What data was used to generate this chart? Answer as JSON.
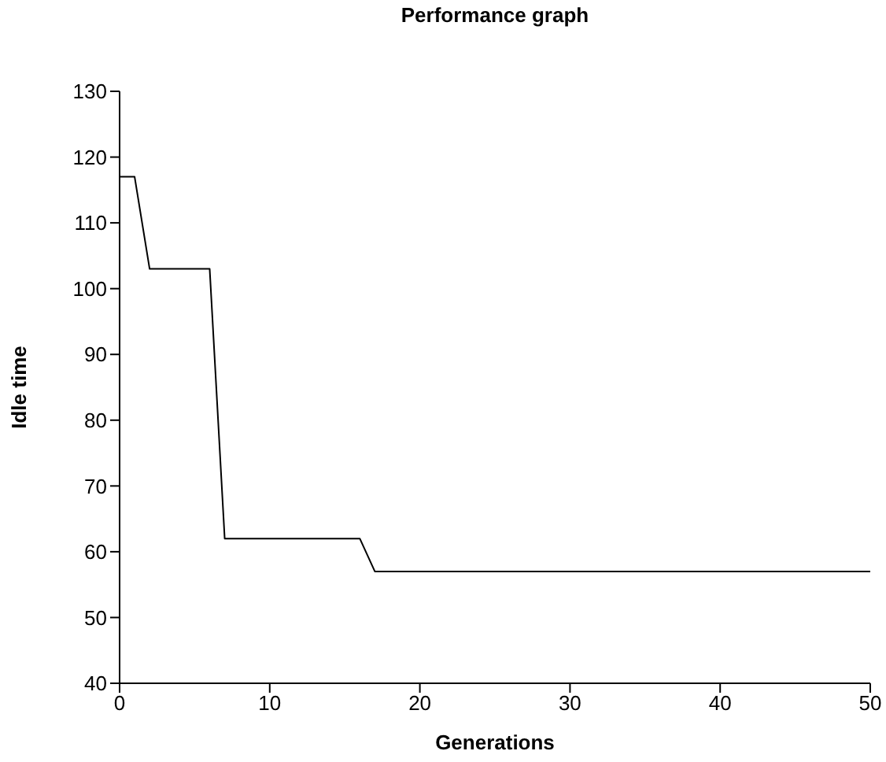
{
  "chart_data": {
    "type": "line",
    "title": "Performance graph",
    "xlabel": "Generations",
    "ylabel": "Idle time",
    "x": [
      0,
      1,
      2,
      3,
      4,
      5,
      6,
      7,
      8,
      9,
      10,
      11,
      12,
      13,
      14,
      15,
      16,
      17,
      20,
      30,
      40,
      50
    ],
    "series": [
      {
        "color": "#000000",
        "values": [
          117,
          117,
          103,
          103,
          103,
          103,
          103,
          62,
          62,
          62,
          62,
          62,
          62,
          62,
          62,
          62,
          62,
          57,
          57,
          57,
          57,
          57
        ]
      }
    ],
    "xlim": [
      0,
      50
    ],
    "xticks": [
      0,
      10,
      20,
      30,
      40,
      50
    ],
    "ylim": [
      40,
      130
    ],
    "yticks": [
      40,
      50,
      60,
      70,
      80,
      90,
      100,
      110,
      120,
      130
    ],
    "grid": false,
    "legend": false,
    "marker": "none",
    "line_style": "solid"
  }
}
